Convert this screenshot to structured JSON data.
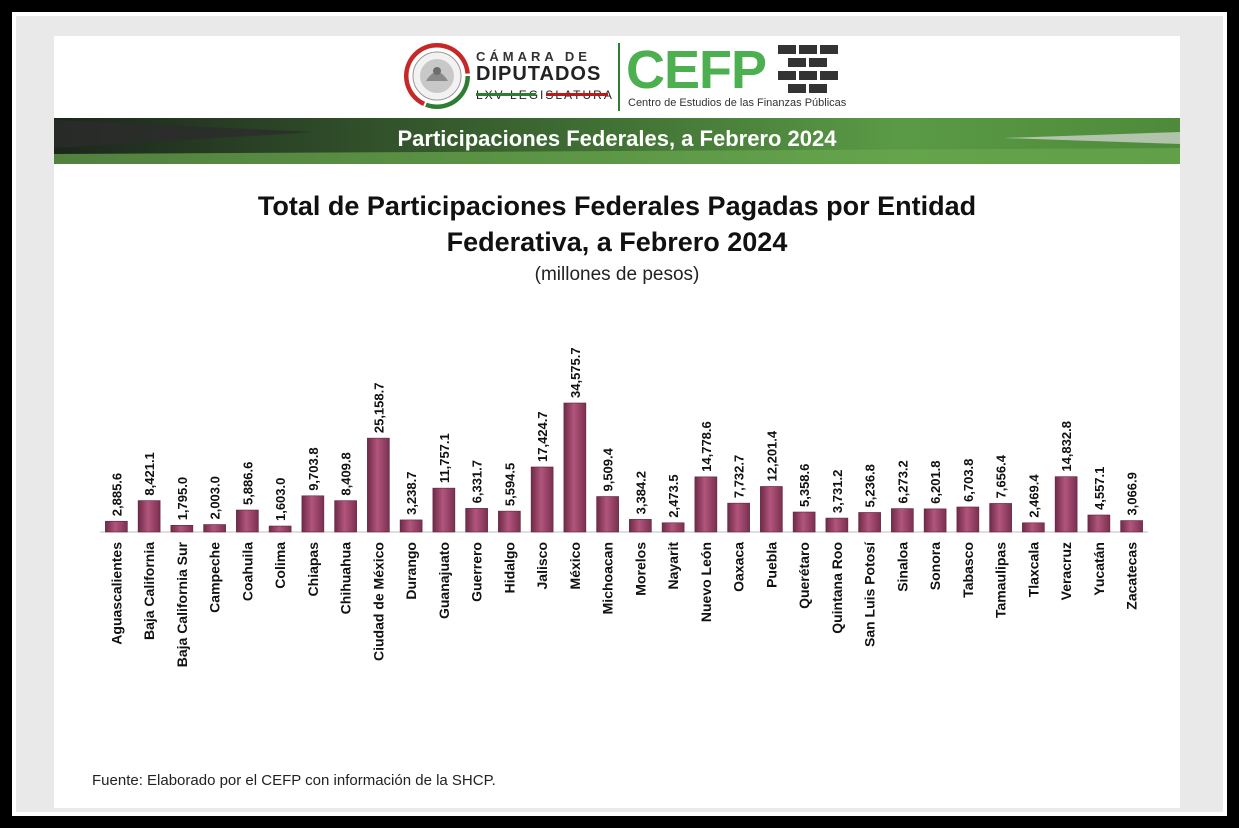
{
  "header": {
    "camara_line1": "CÁMARA DE",
    "camara_line2": "DIPUTADOS",
    "camara_line3": "LXV LEGISLATURA",
    "cefp_logo": "CEFP",
    "cefp_subtitle": "Centro de Estudios de las Finanzas Públicas",
    "banner_title": "Participaciones Federales, a Febrero 2024"
  },
  "colors": {
    "bar": "#a0456a",
    "banner_green": "#4e8a3a",
    "banner_dark": "#1f2a1f",
    "cefp_green": "#4caf50"
  },
  "chart_data": {
    "type": "bar",
    "title_line1": "Total de Participaciones Federales Pagadas por Entidad",
    "title_line2": "Federativa, a Febrero 2024",
    "subtitle": "(millones de pesos)",
    "xlabel": "",
    "ylabel": "",
    "ylim": [
      0,
      36000
    ],
    "grid": false,
    "categories": [
      "Aguascalientes",
      "Baja California",
      "Baja California Sur",
      "Campeche",
      "Coahuila",
      "Colima",
      "Chiapas",
      "Chihuahua",
      "Ciudad de México",
      "Durango",
      "Guanajuato",
      "Guerrero",
      "Hidalgo",
      "Jalisco",
      "México",
      "Michoacan",
      "Morelos",
      "Nayarit",
      "Nuevo León",
      "Oaxaca",
      "Puebla",
      "Querétaro",
      "Quintana Roo",
      "San Luis Potosí",
      "Sinaloa",
      "Sonora",
      "Tabasco",
      "Tamaulipas",
      "Tlaxcala",
      "Veracruz",
      "Yucatán",
      "Zacatecas"
    ],
    "values": [
      2885.6,
      8421.1,
      1795.0,
      2003.0,
      5886.6,
      1603.0,
      9703.8,
      8409.8,
      25158.7,
      3238.7,
      11757.1,
      6331.7,
      5594.5,
      17424.7,
      34575.7,
      9509.4,
      3384.2,
      2473.5,
      14778.6,
      7732.7,
      12201.4,
      5358.6,
      3731.2,
      5236.8,
      6273.2,
      6201.8,
      6703.8,
      7656.4,
      2469.4,
      14832.8,
      4557.1,
      3066.9
    ],
    "data_labels": [
      "2,885.6",
      "8,421.1",
      "1,795.0",
      "2,003.0",
      "5,886.6",
      "1,603.0",
      "9,703.8",
      "8,409.8",
      "25,158.7",
      "3,238.7",
      "11,757.1",
      "6,331.7",
      "5,594.5",
      "17,424.7",
      "34,575.7",
      "9,509.4",
      "3,384.2",
      "2,473.5",
      "14,778.6",
      "7,732.7",
      "12,201.4",
      "5,358.6",
      "3,731.2",
      "5,236.8",
      "6,273.2",
      "6,201.8",
      "6,703.8",
      "7,656.4",
      "2,469.4",
      "14,832.8",
      "4,557.1",
      "3,066.9"
    ]
  },
  "source": "Fuente: Elaborado por el CEFP con información de la SHCP."
}
